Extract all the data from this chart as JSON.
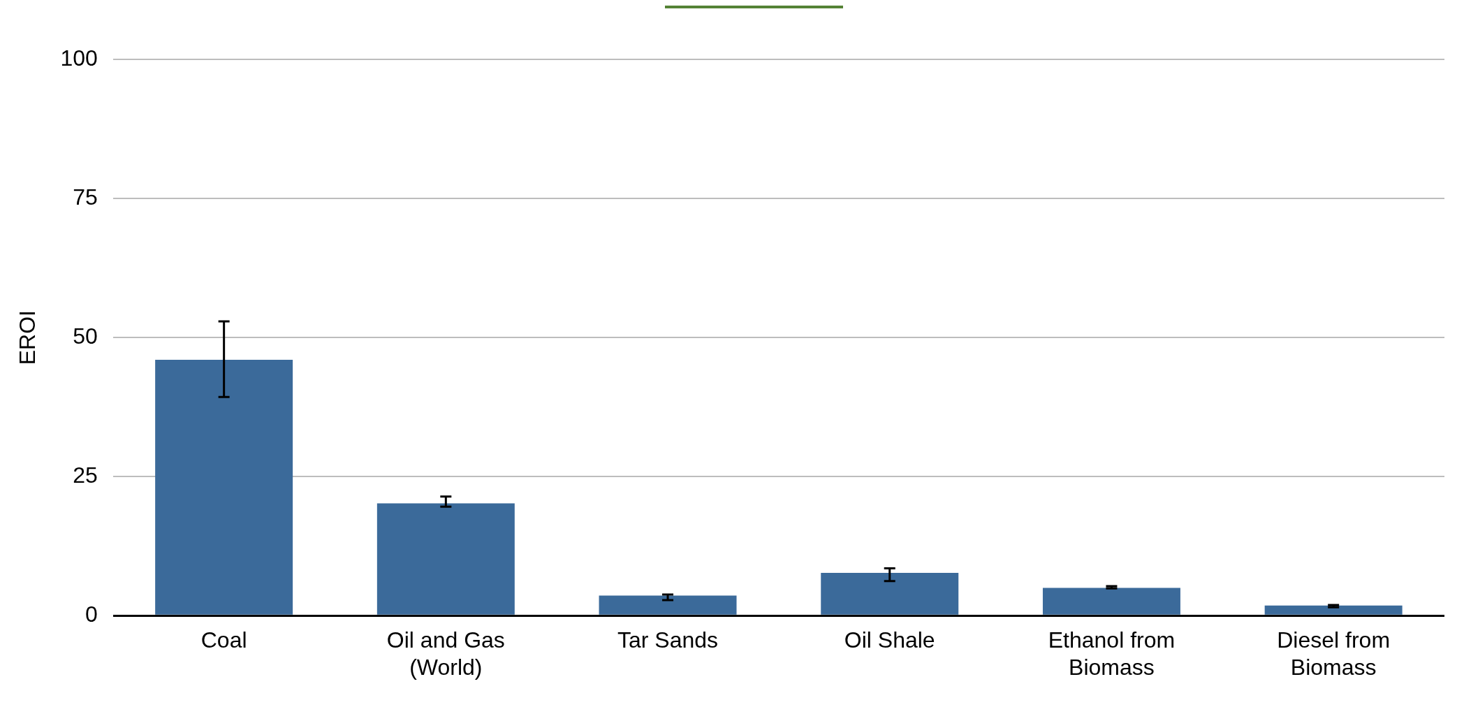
{
  "chart_data": {
    "type": "bar",
    "ylabel": "EROI",
    "categories": [
      "Coal",
      "Oil and Gas\n(World)",
      "Tar Sands",
      "Oil Shale",
      "Ethanol from\nBiomass",
      "Diesel from\nBiomass"
    ],
    "values": [
      46,
      20.2,
      3.6,
      7.7,
      5,
      1.8
    ],
    "errors": [
      [
        39.3,
        52.9
      ],
      [
        19.6,
        21.4
      ],
      [
        2.8,
        3.8
      ],
      [
        6.2,
        8.5
      ],
      [
        4.9,
        5.3
      ],
      [
        1.5,
        1.9
      ]
    ],
    "color": "#3b6a9a",
    "ylim": [
      0,
      100
    ],
    "yticks": [
      0,
      25,
      50,
      75,
      100
    ],
    "grid": "y",
    "legend": false
  }
}
